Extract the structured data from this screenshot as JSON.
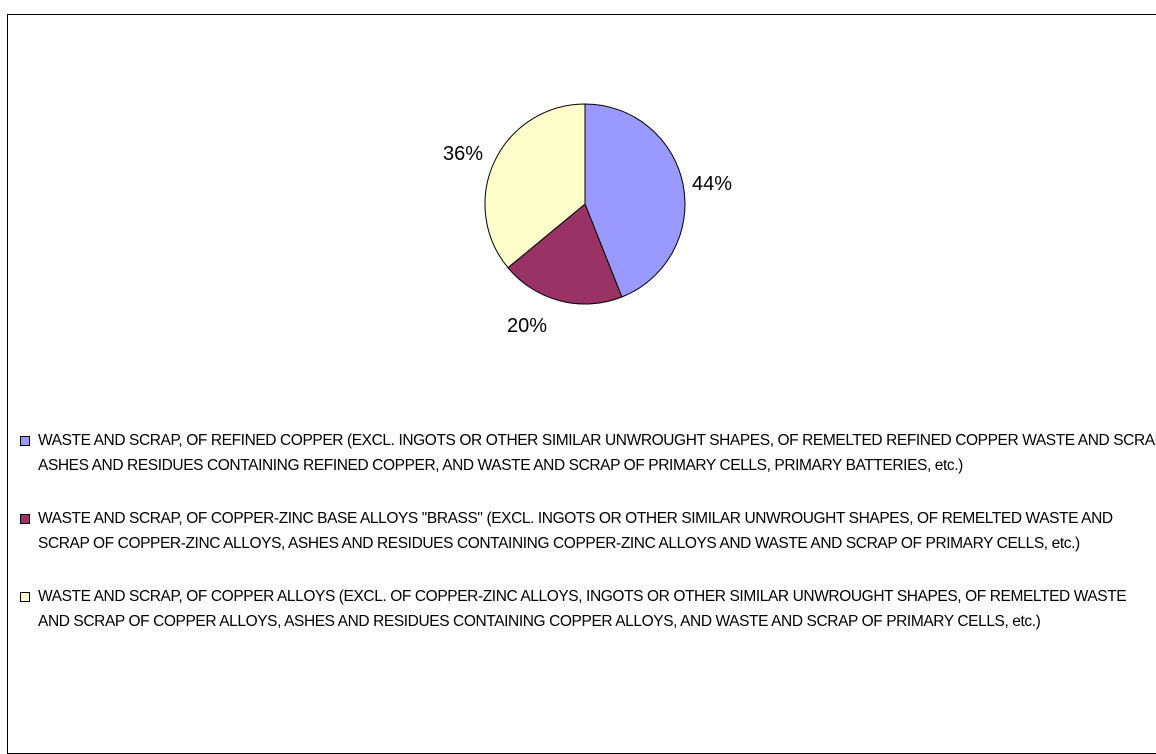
{
  "chart_data": {
    "type": "pie",
    "slices": [
      {
        "label": "44%",
        "value": 44,
        "color": "#9999ff",
        "legend": "WASTE AND SCRAP, OF REFINED COPPER (EXCL. INGOTS OR OTHER SIMILAR UNWROUGHT SHAPES, OF REMELTED REFINED COPPER WASTE AND SCRAP, ASHES AND RESIDUES CONTAINING REFINED COPPER, AND WASTE AND SCRAP OF PRIMARY CELLS, PRIMARY BATTERIES, etc.)"
      },
      {
        "label": "20%",
        "value": 20,
        "color": "#993366",
        "legend": "WASTE AND SCRAP, OF COPPER-ZINC BASE ALLOYS \"BRASS\" (EXCL. INGOTS OR OTHER SIMILAR UNWROUGHT SHAPES, OF REMELTED WASTE AND SCRAP OF COPPER-ZINC ALLOYS, ASHES AND RESIDUES CONTAINING COPPER-ZINC ALLOYS AND WASTE AND SCRAP OF PRIMARY CELLS, etc.)"
      },
      {
        "label": "36%",
        "value": 36,
        "color": "#ffffcc",
        "legend": "WASTE AND SCRAP, OF COPPER ALLOYS (EXCL. OF COPPER-ZINC ALLOYS, INGOTS OR OTHER SIMILAR UNWROUGHT SHAPES, OF REMELTED WASTE AND SCRAP OF COPPER ALLOYS, ASHES AND RESIDUES CONTAINING COPPER ALLOYS, AND WASTE AND SCRAP OF PRIMARY CELLS, etc.)"
      }
    ],
    "legend_position": "bottom"
  }
}
